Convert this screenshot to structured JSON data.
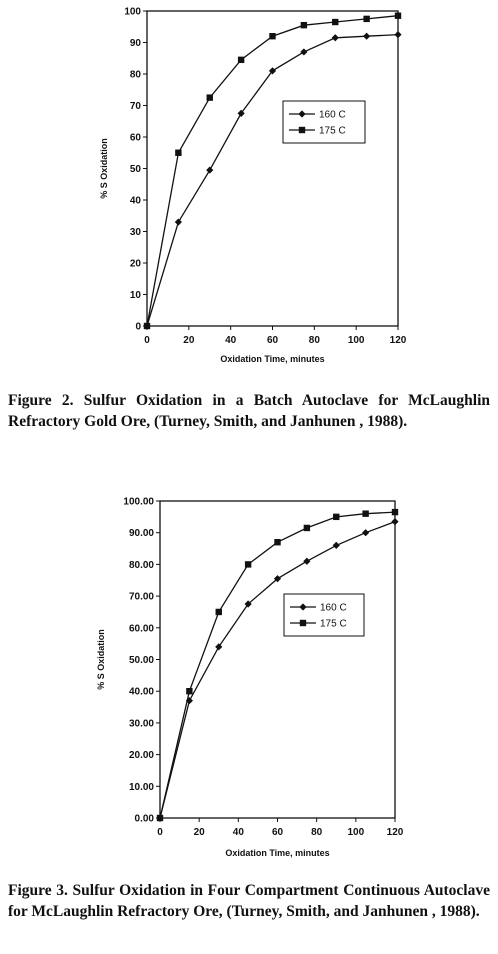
{
  "chart_data": [
    {
      "type": "line",
      "xlabel": "Oxidation Time, minutes",
      "ylabel": "% S Oxidation",
      "xlim": [
        0,
        120
      ],
      "ylim": [
        0,
        100
      ],
      "x_ticks": [
        "0",
        "20",
        "40",
        "60",
        "80",
        "100",
        "120"
      ],
      "y_ticks": [
        "0",
        "10",
        "20",
        "30",
        "40",
        "50",
        "60",
        "70",
        "80",
        "90",
        "100"
      ],
      "legend_position": "center-right",
      "series": [
        {
          "name": "160 C",
          "marker": "diamond",
          "x": [
            0,
            15,
            30,
            45,
            60,
            75,
            90,
            105,
            120
          ],
          "y": [
            0,
            33,
            49.5,
            67.5,
            81,
            87,
            91.5,
            92,
            92.5
          ]
        },
        {
          "name": "175 C",
          "marker": "square",
          "x": [
            0,
            15,
            30,
            45,
            60,
            75,
            90,
            105,
            120
          ],
          "y": [
            0,
            55,
            72.5,
            84.5,
            92,
            95.5,
            96.5,
            97.5,
            98.5
          ]
        }
      ],
      "caption": "Figure 2. Sulfur Oxidation in a Batch Autoclave for McLaughlin Refractory Gold Ore, (Turney, Smith, and Janhunen , 1988)."
    },
    {
      "type": "line",
      "xlabel": "Oxidation Time, minutes",
      "ylabel": "% S Oxidation",
      "xlim": [
        0,
        120
      ],
      "ylim": [
        0,
        100
      ],
      "x_ticks": [
        "0",
        "20",
        "40",
        "60",
        "80",
        "100",
        "120"
      ],
      "y_ticks": [
        "0.00",
        "10.00",
        "20.00",
        "30.00",
        "40.00",
        "50.00",
        "60.00",
        "70.00",
        "80.00",
        "90.00",
        "100.00"
      ],
      "legend_position": "center-right",
      "series": [
        {
          "name": "160 C",
          "marker": "diamond",
          "x": [
            0,
            15,
            30,
            45,
            60,
            75,
            90,
            105,
            120
          ],
          "y": [
            0,
            37,
            54,
            67.5,
            75.5,
            81,
            86,
            90,
            93.5
          ]
        },
        {
          "name": "175 C",
          "marker": "square",
          "x": [
            0,
            15,
            30,
            45,
            60,
            75,
            90,
            105,
            120
          ],
          "y": [
            0,
            40,
            65,
            80,
            87,
            91.5,
            95,
            96,
            96.5
          ]
        }
      ],
      "caption": "Figure 3. Sulfur Oxidation in Four Compartment Continuous Autoclave for McLaughlin Refractory Ore, (Turney, Smith, and Janhunen , 1988)."
    }
  ]
}
